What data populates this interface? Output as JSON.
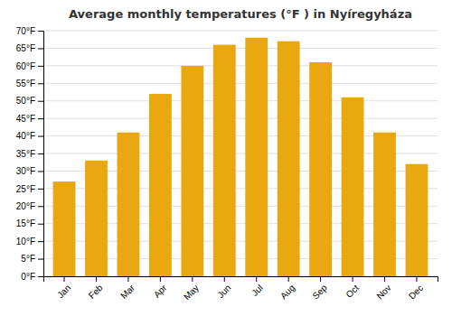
{
  "chart_data": {
    "type": "bar",
    "title": "Average monthly temperatures (°F ) in Nyíregyháza",
    "categories": [
      "Jan",
      "Feb",
      "Mar",
      "Apr",
      "May",
      "Jun",
      "Jul",
      "Aug",
      "Sep",
      "Oct",
      "Nov",
      "Dec"
    ],
    "values": [
      27,
      33,
      41,
      52,
      60,
      66,
      68,
      67,
      61,
      51,
      41,
      32
    ],
    "color": "#EAA810",
    "ylim": [
      0,
      70
    ],
    "yticks": [
      {
        "value": 0,
        "label": "0°F"
      },
      {
        "value": 5,
        "label": "5°F"
      },
      {
        "value": 10,
        "label": "10°F"
      },
      {
        "value": 15,
        "label": "15°F"
      },
      {
        "value": 20,
        "label": "20°F"
      },
      {
        "value": 25,
        "label": "25°F"
      },
      {
        "value": 30,
        "label": "30°F"
      },
      {
        "value": 35,
        "label": "35°F"
      },
      {
        "value": 40,
        "label": "40°F"
      },
      {
        "value": 45,
        "label": "45°F"
      },
      {
        "value": 50,
        "label": "50°F"
      },
      {
        "value": 55,
        "label": "55°F"
      },
      {
        "value": 60,
        "label": "60°F"
      },
      {
        "value": 65,
        "label": "65°F"
      },
      {
        "value": 70,
        "label": "70°F"
      }
    ],
    "grid": true
  }
}
